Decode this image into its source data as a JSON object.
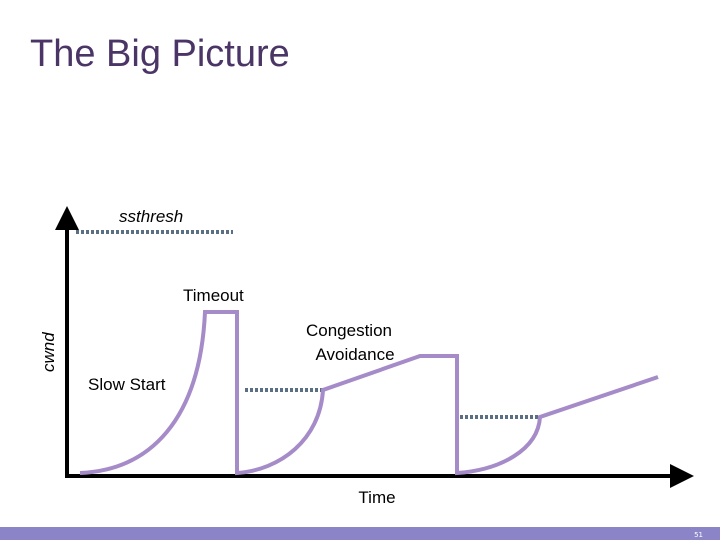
{
  "header": {
    "title": "The Big Picture"
  },
  "diagram": {
    "y_axis_label": "cwnd",
    "x_axis_label": "Time",
    "ssthresh_label": "ssthresh",
    "timeout_label": "Timeout",
    "slow_start_label": "Slow Start",
    "congestion_avoidance_label": [
      "Congestion",
      "Avoidance"
    ]
  },
  "footer": {
    "page_number": "51"
  }
}
